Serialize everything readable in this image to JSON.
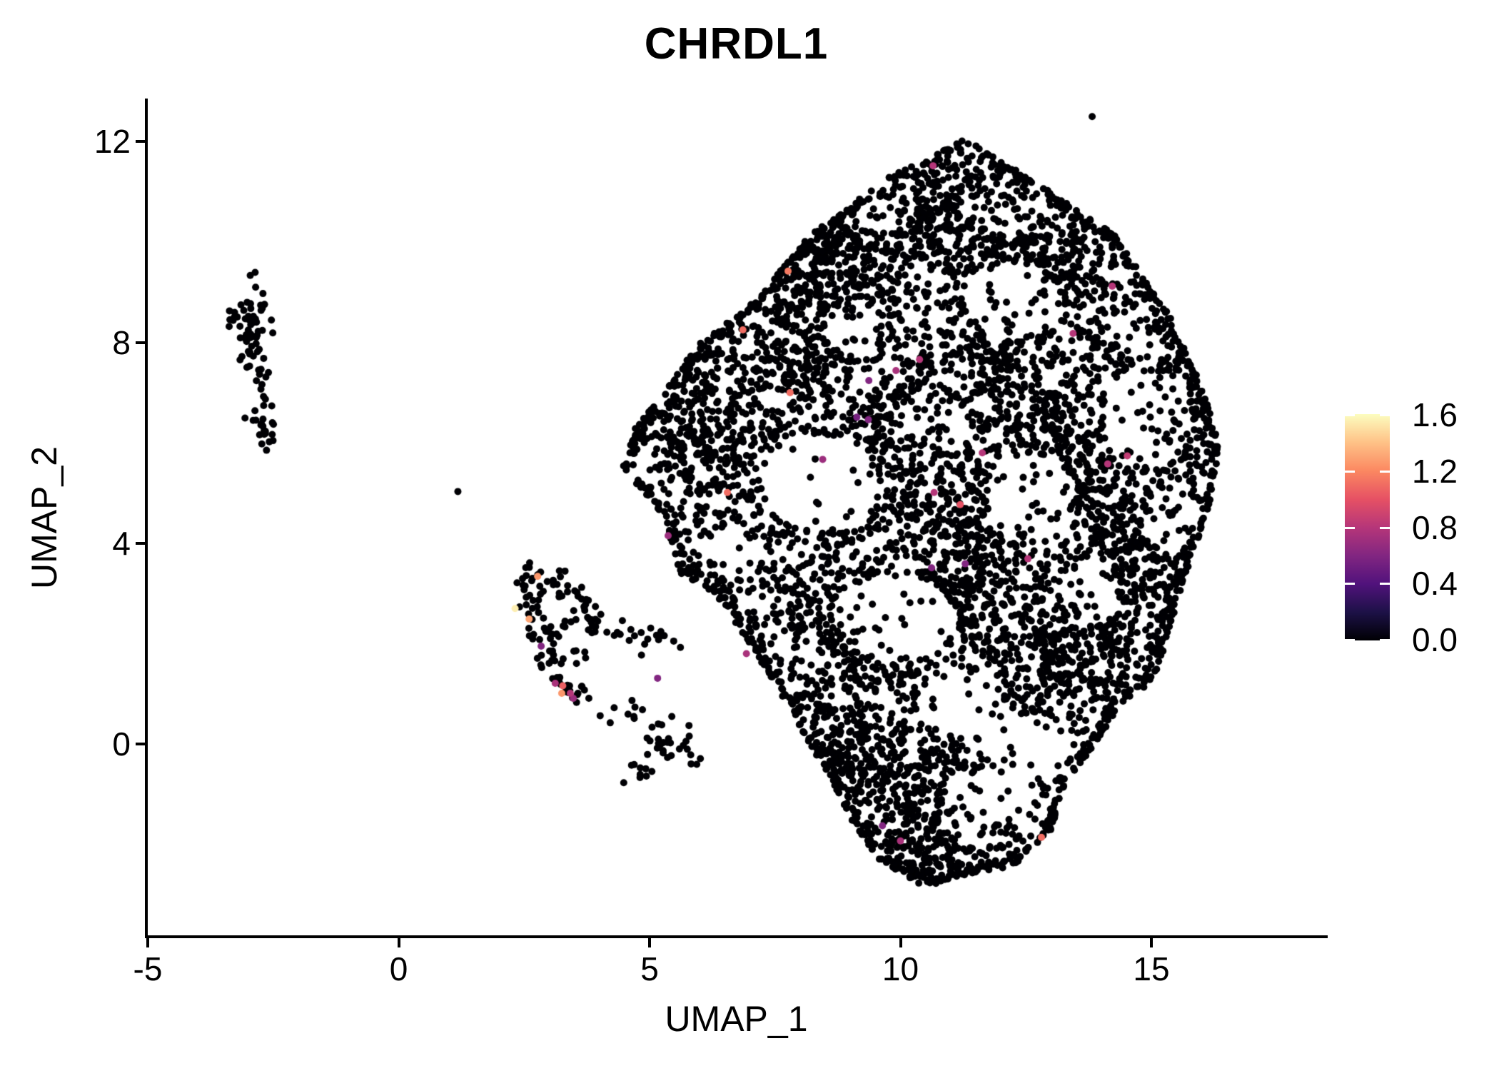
{
  "title": "CHRDL1",
  "axes": {
    "x": {
      "label": "UMAP_1",
      "ticks": [
        "-5",
        "0",
        "5",
        "10",
        "15"
      ],
      "tick_values": [
        -5,
        0,
        5,
        10,
        15
      ],
      "min": -5.05,
      "max": 18.5
    },
    "y": {
      "label": "UMAP_2",
      "ticks": [
        "0",
        "4",
        "8",
        "12"
      ],
      "tick_values": [
        0,
        4,
        8,
        12
      ],
      "min": -3.8,
      "max": 12.8
    }
  },
  "legend": {
    "min": 0,
    "max": 1.6,
    "colormap": "magma",
    "ticks": [
      {
        "label": "1.6",
        "value": 1.6
      },
      {
        "label": "1.2",
        "value": 1.2
      },
      {
        "label": "0.8",
        "value": 0.8
      },
      {
        "label": "0.4",
        "value": 0.4
      },
      {
        "label": "0.0",
        "value": 0.0
      }
    ],
    "stops": [
      [
        0,
        "#000004"
      ],
      [
        0.125,
        "#1d1147"
      ],
      [
        0.25,
        "#51127c"
      ],
      [
        0.375,
        "#822681"
      ],
      [
        0.5,
        "#b63679"
      ],
      [
        0.625,
        "#e65164"
      ],
      [
        0.75,
        "#fb8861"
      ],
      [
        0.875,
        "#fec287"
      ],
      [
        1,
        "#fcfdbf"
      ]
    ]
  },
  "chart_data": {
    "type": "scatter",
    "title": "CHRDL1",
    "xlabel": "UMAP_1",
    "ylabel": "UMAP_2",
    "x_range": [
      -5.05,
      18.5
    ],
    "y_range": [
      -3.8,
      12.8
    ],
    "grid": false,
    "legend_position": "right",
    "color_scale": {
      "name": "magma",
      "domain": [
        0,
        1.6
      ]
    },
    "point_radius_px": 5,
    "seed": 20240531,
    "zero_expression_value": 0,
    "clusters": {
      "left_small": {
        "generators": [
          {
            "kind": "gauss",
            "cx": -2.88,
            "cy": 8.3,
            "sx": 0.16,
            "sy": 0.4,
            "n": 46
          },
          {
            "kind": "gauss",
            "cx": -2.98,
            "cy": 8.6,
            "sx": 0.18,
            "sy": 0.18,
            "n": 12
          },
          {
            "kind": "line",
            "x1": -2.8,
            "y1": 7.75,
            "x2": -2.7,
            "y2": 6.8,
            "jitter": 0.07,
            "n": 9
          },
          {
            "kind": "gauss",
            "cx": -2.7,
            "cy": 6.3,
            "sx": 0.13,
            "sy": 0.2,
            "n": 23
          }
        ]
      },
      "mid_left_hook": {
        "generators": [
          {
            "kind": "line",
            "x1": 2.62,
            "y1": 3.42,
            "x2": 2.78,
            "y2": 2.35,
            "jitter": 0.15,
            "n": 26
          },
          {
            "kind": "line",
            "x1": 2.78,
            "y1": 2.35,
            "x2": 3.3,
            "y2": 1.2,
            "jitter": 0.14,
            "n": 24
          },
          {
            "kind": "line",
            "x1": 2.75,
            "y1": 3.5,
            "x2": 3.6,
            "y2": 2.95,
            "jitter": 0.14,
            "n": 20
          },
          {
            "kind": "line",
            "x1": 3.62,
            "y1": 2.9,
            "x2": 3.95,
            "y2": 2.2,
            "jitter": 0.13,
            "n": 14
          },
          {
            "kind": "line",
            "x1": 3.3,
            "y1": 2.6,
            "x2": 3.62,
            "y2": 1.8,
            "jitter": 0.18,
            "n": 12
          },
          {
            "kind": "line",
            "x1": 3.15,
            "y1": 1.25,
            "x2": 3.85,
            "y2": 0.85,
            "jitter": 0.12,
            "n": 16
          },
          {
            "kind": "line",
            "x1": 4.0,
            "y1": 2.45,
            "x2": 5.65,
            "y2": 1.95,
            "jitter": 0.15,
            "n": 22
          },
          {
            "kind": "line",
            "x1": 4.1,
            "y1": 0.75,
            "x2": 5.3,
            "y2": 0.35,
            "jitter": 0.2,
            "n": 12
          },
          {
            "kind": "gauss",
            "cx": 5.45,
            "cy": -0.05,
            "sx": 0.3,
            "sy": 0.22,
            "n": 26
          },
          {
            "kind": "gauss",
            "cx": 4.85,
            "cy": -0.5,
            "sx": 0.13,
            "sy": 0.1,
            "n": 9
          },
          {
            "kind": "gauss",
            "cx": 3.3,
            "cy": 2.2,
            "sx": 0.35,
            "sy": 0.4,
            "n": 10
          }
        ]
      },
      "main": {
        "polygon": [
          [
            11.3,
            12.05
          ],
          [
            12.6,
            11.25
          ],
          [
            14.25,
            10.15
          ],
          [
            15.35,
            8.55
          ],
          [
            16.1,
            6.9
          ],
          [
            16.35,
            5.9
          ],
          [
            16.15,
            4.75
          ],
          [
            15.55,
            2.95
          ],
          [
            15.1,
            1.35
          ],
          [
            14.25,
            0.6
          ],
          [
            13.9,
            0.0
          ],
          [
            13.3,
            -0.75
          ],
          [
            13.0,
            -1.7
          ],
          [
            12.25,
            -2.45
          ],
          [
            11.2,
            -2.62
          ],
          [
            10.5,
            -2.85
          ],
          [
            9.55,
            -2.3
          ],
          [
            9.05,
            -1.55
          ],
          [
            8.65,
            -0.75
          ],
          [
            8.28,
            -0.15
          ],
          [
            7.85,
            0.62
          ],
          [
            7.0,
            2.0
          ],
          [
            6.3,
            3.0
          ],
          [
            5.6,
            3.42
          ],
          [
            5.3,
            4.55
          ],
          [
            4.45,
            5.45
          ],
          [
            4.72,
            6.3
          ],
          [
            5.18,
            6.85
          ],
          [
            6.0,
            8.0
          ],
          [
            7.15,
            8.85
          ],
          [
            8.15,
            10.1
          ],
          [
            9.7,
            11.25
          ]
        ],
        "uniform_n": 3400,
        "rim_points_per_unit": 16,
        "rim_jitter": 0.1,
        "voids": [
          {
            "cx": 8.4,
            "cy": 5.2,
            "rx": 1.15,
            "ry": 0.95,
            "keep": 0.08
          },
          {
            "cx": 9.9,
            "cy": 2.5,
            "rx": 1.2,
            "ry": 0.9,
            "keep": 0.1
          },
          {
            "cx": 12.2,
            "cy": 8.85,
            "rx": 0.95,
            "ry": 0.75,
            "keep": 0.1
          },
          {
            "cx": 14.9,
            "cy": 6.5,
            "rx": 0.85,
            "ry": 1.05,
            "keep": 0.12
          },
          {
            "cx": 12.6,
            "cy": 5.0,
            "rx": 0.85,
            "ry": 0.8,
            "keep": 0.1
          },
          {
            "cx": 11.2,
            "cy": 0.8,
            "rx": 0.85,
            "ry": 0.65,
            "keep": 0.12
          },
          {
            "cx": 12.5,
            "cy": 0.0,
            "rx": 0.9,
            "ry": 0.6,
            "keep": 0.08
          },
          {
            "cx": 12.0,
            "cy": -1.05,
            "rx": 0.75,
            "ry": 0.55,
            "keep": 0.15
          },
          {
            "cx": 9.7,
            "cy": 10.75,
            "rx": 0.65,
            "ry": 0.5,
            "keep": 0.25
          },
          {
            "cx": 13.8,
            "cy": 3.0,
            "rx": 0.6,
            "ry": 0.6,
            "keep": 0.2
          },
          {
            "cx": 10.6,
            "cy": 6.35,
            "rx": 0.7,
            "ry": 0.55,
            "keep": 0.25
          },
          {
            "cx": 15.4,
            "cy": 4.4,
            "rx": 0.55,
            "ry": 0.75,
            "keep": 0.25
          },
          {
            "cx": 9.0,
            "cy": 8.3,
            "rx": 0.55,
            "ry": 0.5,
            "keep": 0.3
          },
          {
            "cx": 4.9,
            "cy": 5.3,
            "rx": 0.5,
            "ry": 0.6,
            "keep": 0.35
          },
          {
            "cx": 6.7,
            "cy": 3.9,
            "rx": 0.5,
            "ry": 0.5,
            "keep": 0.3
          }
        ],
        "dense": [
          {
            "cx": 8.6,
            "cy": 9.7,
            "sx": 0.75,
            "sy": 0.65,
            "n": 220
          },
          {
            "cx": 7.9,
            "cy": 7.5,
            "sx": 0.45,
            "sy": 0.7,
            "n": 130
          },
          {
            "cx": 6.1,
            "cy": 6.1,
            "sx": 0.45,
            "sy": 0.75,
            "n": 110
          },
          {
            "cx": 10.9,
            "cy": 10.6,
            "sx": 0.8,
            "sy": 0.5,
            "n": 140
          },
          {
            "cx": 12.9,
            "cy": 9.6,
            "sx": 0.7,
            "sy": 0.55,
            "n": 120
          },
          {
            "cx": 14.6,
            "cy": 3.7,
            "sx": 0.65,
            "sy": 0.85,
            "n": 160
          },
          {
            "cx": 13.1,
            "cy": 1.8,
            "sx": 0.75,
            "sy": 0.55,
            "n": 140
          },
          {
            "cx": 10.9,
            "cy": 4.3,
            "sx": 0.85,
            "sy": 0.75,
            "n": 170
          },
          {
            "cx": 12.3,
            "cy": 6.7,
            "sx": 0.65,
            "sy": 0.55,
            "n": 120
          },
          {
            "cx": 9.4,
            "cy": -0.4,
            "sx": 0.75,
            "sy": 0.5,
            "n": 170
          },
          {
            "cx": 10.3,
            "cy": -1.9,
            "sx": 0.55,
            "sy": 0.4,
            "n": 90
          },
          {
            "cx": 9.0,
            "cy": 2.2,
            "sx": 0.5,
            "sy": 0.6,
            "n": 100
          },
          {
            "cx": 15.3,
            "cy": 6.2,
            "sx": 0.45,
            "sy": 0.7,
            "n": 90
          },
          {
            "cx": 11.6,
            "cy": 2.9,
            "sx": 0.7,
            "sy": 0.6,
            "n": 120
          },
          {
            "cx": 13.6,
            "cy": 5.3,
            "sx": 0.6,
            "sy": 0.6,
            "n": 110
          },
          {
            "cx": 9.9,
            "cy": 6.1,
            "sx": 0.55,
            "sy": 0.55,
            "n": 100
          },
          {
            "cx": 11.9,
            "cy": 8.3,
            "sx": 0.6,
            "sy": 0.55,
            "n": 110
          }
        ]
      },
      "strays": [
        [
          1.18,
          5.03
        ],
        [
          13.82,
          12.5
        ]
      ]
    },
    "expressing_cells": [
      {
        "x": 2.77,
        "y": 3.34,
        "v": 1.25
      },
      {
        "x": 2.32,
        "y": 2.7,
        "v": 1.55
      },
      {
        "x": 2.6,
        "y": 2.49,
        "v": 1.3
      },
      {
        "x": 2.84,
        "y": 1.95,
        "v": 0.6
      },
      {
        "x": 3.12,
        "y": 1.21,
        "v": 0.75
      },
      {
        "x": 3.27,
        "y": 1.16,
        "v": 1.05
      },
      {
        "x": 3.25,
        "y": 1.01,
        "v": 1.25
      },
      {
        "x": 3.42,
        "y": 1.01,
        "v": 0.8
      },
      {
        "x": 3.48,
        "y": 0.91,
        "v": 0.7
      },
      {
        "x": 6.86,
        "y": 8.25,
        "v": 1.1
      },
      {
        "x": 7.76,
        "y": 9.42,
        "v": 1.15
      },
      {
        "x": 10.65,
        "y": 11.52,
        "v": 0.8
      },
      {
        "x": 14.22,
        "y": 9.12,
        "v": 0.8
      },
      {
        "x": 13.44,
        "y": 8.18,
        "v": 0.8
      },
      {
        "x": 14.52,
        "y": 5.74,
        "v": 0.85
      },
      {
        "x": 14.13,
        "y": 5.58,
        "v": 0.8
      },
      {
        "x": 10.38,
        "y": 7.66,
        "v": 0.8
      },
      {
        "x": 9.91,
        "y": 7.44,
        "v": 0.75
      },
      {
        "x": 9.37,
        "y": 7.24,
        "v": 0.6
      },
      {
        "x": 7.8,
        "y": 7.0,
        "v": 1.1
      },
      {
        "x": 9.13,
        "y": 6.51,
        "v": 0.55
      },
      {
        "x": 9.36,
        "y": 6.46,
        "v": 0.6
      },
      {
        "x": 8.45,
        "y": 5.67,
        "v": 0.7
      },
      {
        "x": 11.63,
        "y": 5.8,
        "v": 0.8
      },
      {
        "x": 6.55,
        "y": 5.01,
        "v": 1.1
      },
      {
        "x": 10.67,
        "y": 5.01,
        "v": 0.8
      },
      {
        "x": 11.19,
        "y": 4.77,
        "v": 1.0
      },
      {
        "x": 10.62,
        "y": 3.51,
        "v": 0.6
      },
      {
        "x": 11.29,
        "y": 3.59,
        "v": 0.6
      },
      {
        "x": 12.54,
        "y": 3.69,
        "v": 0.8
      },
      {
        "x": 5.37,
        "y": 4.15,
        "v": 0.7
      },
      {
        "x": 6.93,
        "y": 1.8,
        "v": 0.75
      },
      {
        "x": 5.16,
        "y": 1.31,
        "v": 0.6
      },
      {
        "x": 9.64,
        "y": -1.63,
        "v": 0.6
      },
      {
        "x": 10.0,
        "y": -1.93,
        "v": 0.75
      },
      {
        "x": 12.81,
        "y": -1.86,
        "v": 1.1
      }
    ]
  }
}
